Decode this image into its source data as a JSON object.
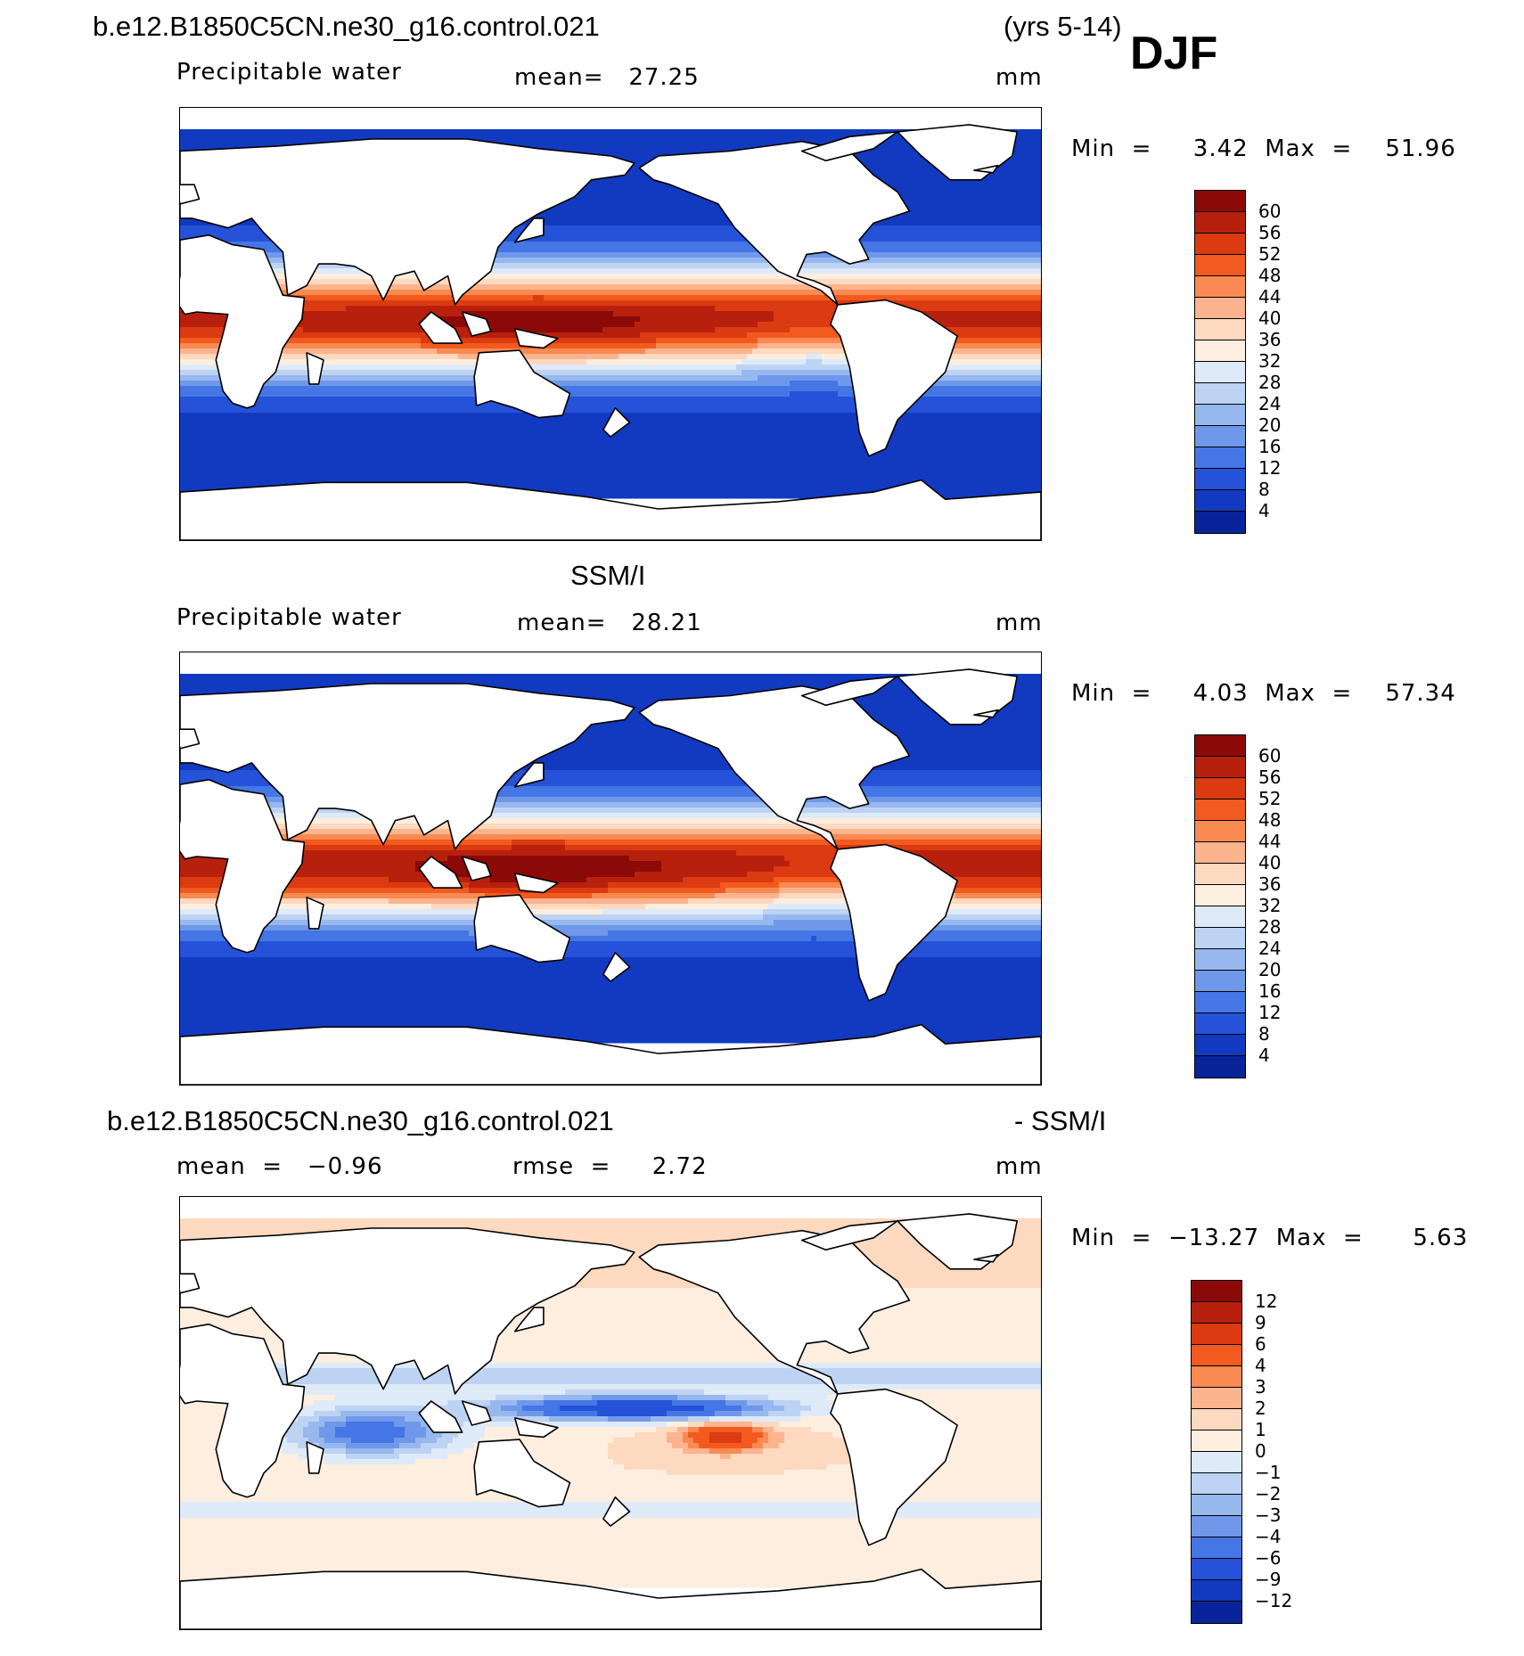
{
  "header": {
    "case_name": "b.e12.B1850C5CN.ne30_g16.control.021",
    "years": "(yrs 5-14)",
    "season": "DJF"
  },
  "panels": [
    {
      "id": "model",
      "title": "",
      "left_label": "Precipitable water",
      "center_label": "mean=   27.25",
      "units": "mm",
      "minmax": "Min  =     3.42  Max  =    51.96",
      "colorbar_labels": [
        "60",
        "56",
        "52",
        "48",
        "44",
        "40",
        "36",
        "32",
        "28",
        "24",
        "20",
        "16",
        "12",
        "8",
        "4"
      ]
    },
    {
      "id": "obs",
      "title": "SSM/I",
      "left_label": "Precipitable water",
      "center_label": "mean=   28.21",
      "units": "mm",
      "minmax": "Min  =     4.03  Max  =    57.34",
      "colorbar_labels": [
        "60",
        "56",
        "52",
        "48",
        "44",
        "40",
        "36",
        "32",
        "28",
        "24",
        "20",
        "16",
        "12",
        "8",
        "4"
      ]
    },
    {
      "id": "diff",
      "title_left": "b.e12.B1850C5CN.ne30_g16.control.021",
      "title_right": "- SSM/I",
      "left_label": "mean  =   −0.96",
      "center_label": "rmse  =     2.72",
      "units": "mm",
      "minmax": "Min  =  −13.27  Max  =      5.63",
      "colorbar_labels": [
        "12",
        "9",
        "6",
        "4",
        "3",
        "2",
        "1",
        "0",
        "−1",
        "−2",
        "−3",
        "−4",
        "−6",
        "−9",
        "−12"
      ]
    }
  ],
  "colors": {
    "abs_scale": [
      "#8b0a08",
      "#b8200e",
      "#dc3a10",
      "#f25a1f",
      "#f98a52",
      "#fcb48f",
      "#fdd9c0",
      "#fdeedf",
      "#dfeaf8",
      "#bdd3f3",
      "#97b8ee",
      "#6f98ea",
      "#4576e5",
      "#2552d8",
      "#123ac0",
      "#09249a"
    ],
    "diff_scale": [
      "#8b0a08",
      "#b8200e",
      "#dc3a10",
      "#f25a1f",
      "#f98a52",
      "#fcb48f",
      "#fdd9c0",
      "#fdeedf",
      "#dfeaf8",
      "#bdd3f3",
      "#97b8ee",
      "#6f98ea",
      "#4576e5",
      "#2552d8",
      "#123ac0",
      "#09249a"
    ],
    "land": "#ffffff",
    "coast": "#000000"
  }
}
